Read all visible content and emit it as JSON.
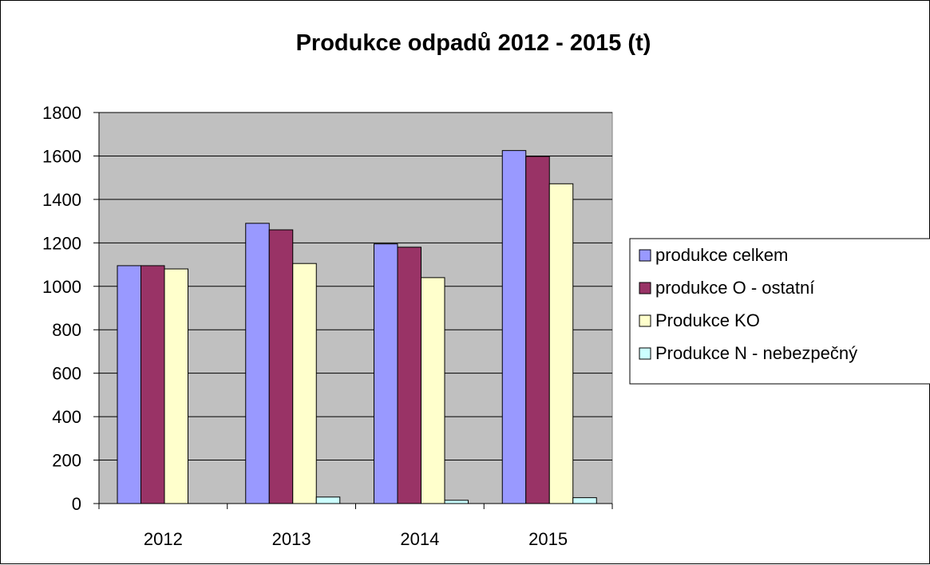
{
  "chart_data": {
    "type": "bar",
    "title": "Produkce odpadů 2012 - 2015 (t)",
    "xlabel": "",
    "ylabel": "",
    "categories": [
      "2012",
      "2013",
      "2014",
      "2015"
    ],
    "ylim": [
      0,
      1800
    ],
    "yticks": [
      0,
      200,
      400,
      600,
      800,
      1000,
      1200,
      1400,
      1600,
      1800
    ],
    "grid": true,
    "legend_position": "right",
    "plot_background": "#c0c0c0",
    "series": [
      {
        "name": "produkce celkem",
        "color": "#9999ff",
        "values": [
          1095,
          1290,
          1195,
          1625
        ]
      },
      {
        "name": "produkce O - ostatní",
        "color": "#993366",
        "values": [
          1095,
          1260,
          1180,
          1598
        ]
      },
      {
        "name": "Produkce KO",
        "color": "#ffffcc",
        "values": [
          1080,
          1105,
          1040,
          1472
        ]
      },
      {
        "name": "Produkce N - nebezpečný",
        "color": "#ccffff",
        "values": [
          0,
          30,
          15,
          27
        ]
      }
    ]
  }
}
